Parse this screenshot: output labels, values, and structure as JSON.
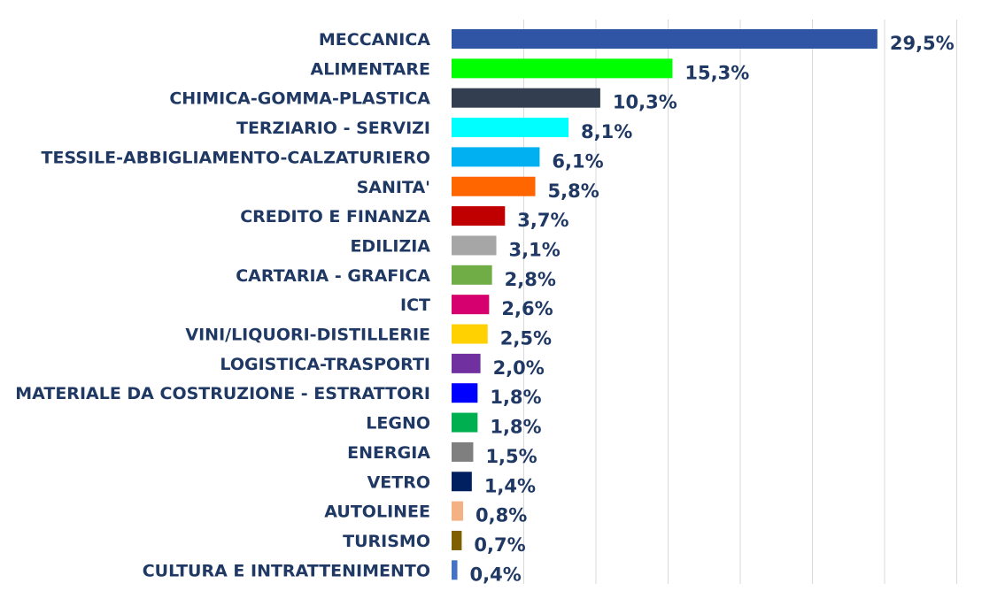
{
  "chart_data": {
    "type": "bar",
    "orientation": "horizontal",
    "title": "",
    "xlabel": "",
    "ylabel": "",
    "xlim": [
      0,
      35
    ],
    "grid": true,
    "legend": "none",
    "label_color": "#1f3864",
    "categories": [
      "MECCANICA",
      "ALIMENTARE",
      "CHIMICA-GOMMA-PLASTICA",
      "TERZIARIO - SERVIZI",
      "TESSILE-ABBIGLIAMENTO-CALZATURIERO",
      "SANITA'",
      "CREDITO E FINANZA",
      "EDILIZIA",
      "CARTARIA - GRAFICA",
      "ICT",
      "VINI/LIQUORI-DISTILLERIE",
      "LOGISTICA-TRASPORTI",
      "MATERIALE DA COSTRUZIONE - ESTRATTORI",
      "LEGNO",
      "ENERGIA",
      "VETRO",
      "AUTOLINEE",
      "TURISMO",
      "CULTURA E INTRATTENIMENTO"
    ],
    "values": [
      29.5,
      15.3,
      10.3,
      8.1,
      6.1,
      5.8,
      3.7,
      3.1,
      2.8,
      2.6,
      2.5,
      2.0,
      1.8,
      1.8,
      1.5,
      1.4,
      0.8,
      0.7,
      0.4
    ],
    "value_labels": [
      "29,5%",
      "15,3%",
      "10,3%",
      "8,1%",
      "6,1%",
      "5,8%",
      "3,7%",
      "3,1%",
      "2,8%",
      "2,6%",
      "2,5%",
      "2,0%",
      "1,8%",
      "1,8%",
      "1,5%",
      "1,4%",
      "0,8%",
      "0,7%",
      "0,4%"
    ],
    "colors": [
      "#2f55a4",
      "#00ff00",
      "#333f50",
      "#00ffff",
      "#00b0f0",
      "#ff6600",
      "#c00000",
      "#a6a6a6",
      "#70ad47",
      "#d6006f",
      "#ffd100",
      "#7030a0",
      "#0000ff",
      "#00b050",
      "#7f7f7f",
      "#002060",
      "#f4b183",
      "#7f6000",
      "#4472c4"
    ]
  }
}
